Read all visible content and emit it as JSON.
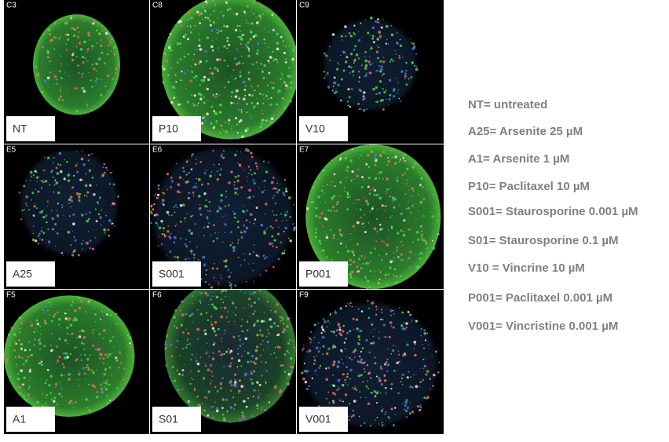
{
  "panels": [
    {
      "well": "C3",
      "label": "NT"
    },
    {
      "well": "C8",
      "label": "P10"
    },
    {
      "well": "C9",
      "label": "V10"
    },
    {
      "well": "E5",
      "label": "A25"
    },
    {
      "well": "E6",
      "label": "S001"
    },
    {
      "well": "E7",
      "label": "P001"
    },
    {
      "well": "F5",
      "label": "A1"
    },
    {
      "well": "F6",
      "label": "S01"
    },
    {
      "well": "F9",
      "label": "V001"
    }
  ],
  "legend": [
    "NT= untreated",
    "A25= Arsenite 25 µM",
    "A1= Arsenite  1 µM",
    "P10= Paclitaxel  10 µM",
    "S001= Staurosporine 0.001 µM",
    "S01= Staurosporine 0.1 µM",
    "V10 = Vincrine 10 µM",
    "P001= Paclitaxel  0.001 µM",
    "V001= Vincristine 0.001 µM"
  ]
}
